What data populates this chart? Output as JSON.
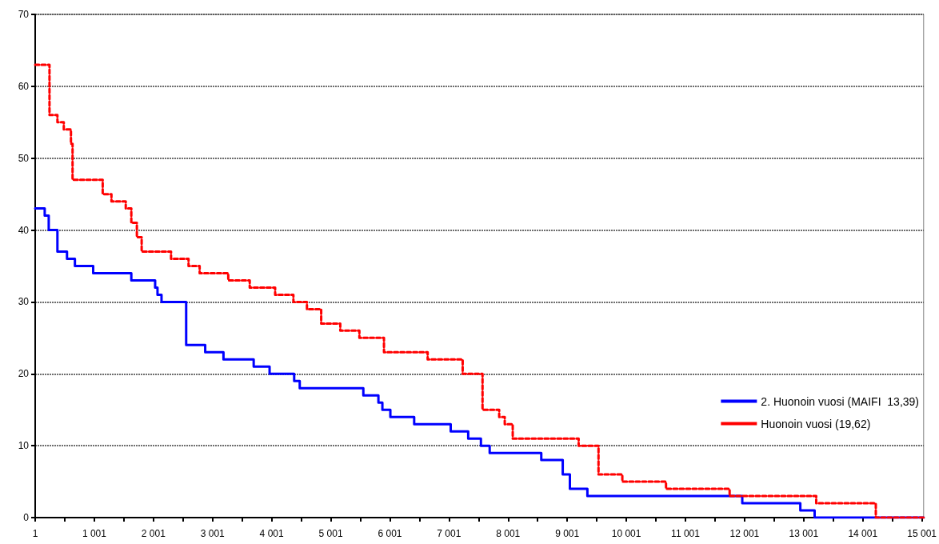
{
  "chart_data": {
    "type": "step",
    "xlim": [
      1,
      15030
    ],
    "ylim": [
      0,
      70
    ],
    "xticks": [
      1,
      {
        "value": 501,
        "label": null
      },
      {
        "value": 1001,
        "label": "1 001"
      },
      {
        "value": 1501,
        "label": null
      },
      {
        "value": 2001,
        "label": "2 001"
      },
      {
        "value": 2501,
        "label": null
      },
      {
        "value": 3001,
        "label": "3 001"
      },
      {
        "value": 3501,
        "label": null
      },
      {
        "value": 4001,
        "label": "4 001"
      },
      {
        "value": 4501,
        "label": null
      },
      {
        "value": 5001,
        "label": "5 001"
      },
      {
        "value": 5501,
        "label": null
      },
      {
        "value": 6001,
        "label": "6 001"
      },
      {
        "value": 6501,
        "label": null
      },
      {
        "value": 7001,
        "label": "7 001"
      },
      {
        "value": 7501,
        "label": null
      },
      {
        "value": 8001,
        "label": "8 001"
      },
      {
        "value": 8501,
        "label": null
      },
      {
        "value": 9001,
        "label": "9 001"
      },
      {
        "value": 9501,
        "label": null
      },
      {
        "value": 10001,
        "label": "10 001"
      },
      {
        "value": 10501,
        "label": null
      },
      {
        "value": 11001,
        "label": "11 001"
      },
      {
        "value": 11501,
        "label": null
      },
      {
        "value": 12001,
        "label": "12 001"
      },
      {
        "value": 12501,
        "label": null
      },
      {
        "value": 13001,
        "label": "13 001"
      },
      {
        "value": 13501,
        "label": null
      },
      {
        "value": 14001,
        "label": "14 001"
      },
      {
        "value": 14501,
        "label": null
      },
      {
        "value": 15001,
        "label": "15 001"
      }
    ],
    "yticks": [
      0,
      10,
      20,
      30,
      40,
      50,
      60,
      70
    ],
    "grid": "y",
    "legend": "right",
    "marker": "none",
    "series": [
      {
        "name": "2. Huonoin vuosi (MAIFI  13,39)",
        "color": "#0000ff",
        "line_style": "solid",
        "x": [
          1,
          162,
          230,
          377,
          539,
          673,
          982,
          1627,
          2030,
          2070,
          2138,
          2555,
          2877,
          3186,
          3697,
          3966,
          4382,
          4476,
          5552,
          5807,
          5874,
          6009,
          6412,
          7030,
          7326,
          7541,
          7689,
          8562,
          8925,
          9046,
          9342,
          11962,
          12944,
          13186,
          15030
        ],
        "values": [
          43,
          42,
          40,
          37,
          36,
          35,
          34,
          33,
          32,
          31,
          30,
          24,
          23,
          22,
          21,
          20,
          19,
          18,
          17,
          16,
          15,
          14,
          13,
          12,
          11,
          10,
          9,
          8,
          6,
          4,
          3,
          2,
          1,
          0,
          0
        ]
      },
      {
        "name": "Huonoin vuosi (19,62)",
        "color": "#ff0000",
        "line_style": "dashed",
        "x": [
          1,
          243,
          377,
          485,
          606,
          633,
          1143,
          1291,
          1533,
          1627,
          1721,
          1802,
          2299,
          2595,
          2783,
          3267,
          3630,
          4060,
          4369,
          4598,
          4839,
          5162,
          5485,
          5901,
          6640,
          7232,
          7568,
          7850,
          7944,
          8079,
          9194,
          9530,
          9933,
          10672,
          11748,
          13213,
          14221,
          15030
        ],
        "values": [
          63,
          56,
          55,
          54,
          52,
          47,
          45,
          44,
          43,
          41,
          39,
          37,
          36,
          35,
          34,
          33,
          32,
          31,
          30,
          29,
          27,
          26,
          25,
          23,
          22,
          20,
          15,
          14,
          13,
          11,
          10,
          6,
          5,
          4,
          3,
          2,
          0,
          0
        ]
      }
    ]
  }
}
